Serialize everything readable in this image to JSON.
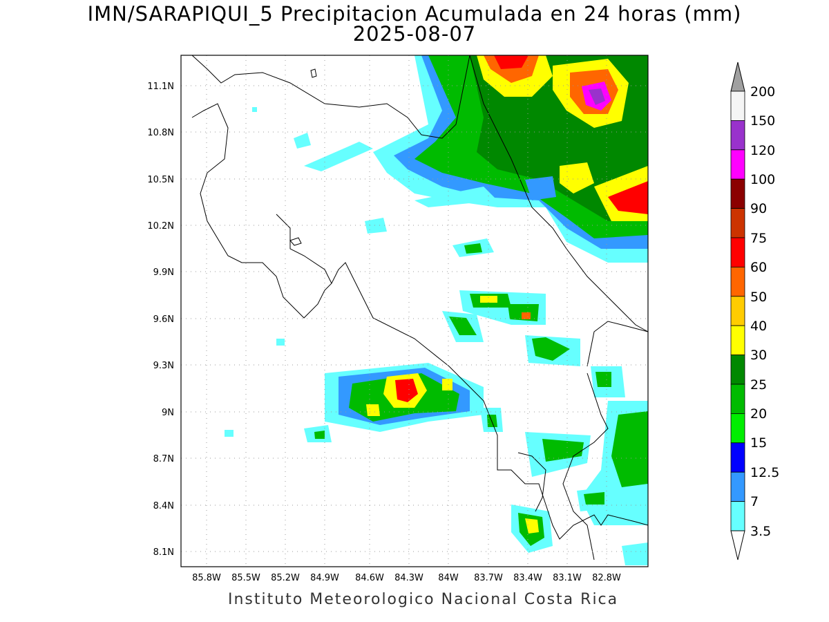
{
  "title": {
    "line1": "IMN/SARAPIQUI_5 Precipitacion Acumulada en 24 horas (mm)",
    "line2": "2025-08-07"
  },
  "footer": "Instituto Meteorologico Nacional Costa Rica",
  "axes": {
    "x_ticks": [
      "85.8W",
      "85.5W",
      "85.2W",
      "84.9W",
      "84.6W",
      "84.3W",
      "84W",
      "83.7W",
      "83.4W",
      "83.1W",
      "82.8W"
    ],
    "y_ticks": [
      "11.1N",
      "10.8N",
      "10.5N",
      "10.2N",
      "9.9N",
      "9.6N",
      "9.3N",
      "9N",
      "8.7N",
      "8.4N",
      "8.1N"
    ],
    "lon_range": [
      -86.0,
      -82.5
    ],
    "lat_range": [
      8.0,
      11.3
    ],
    "grid": "dotted"
  },
  "colorbar": {
    "levels": [
      "200",
      "150",
      "120",
      "100",
      "90",
      "75",
      "60",
      "50",
      "40",
      "30",
      "25",
      "20",
      "15",
      "12.5",
      "7",
      "3.5"
    ],
    "colors": [
      "#f5f5f5",
      "#9932cc",
      "#ff00ff",
      "#8b0000",
      "#cc3300",
      "#ff0000",
      "#ff6600",
      "#ffcc00",
      "#ffff00",
      "#008800",
      "#00bb00",
      "#00ee00",
      "#0000ff",
      "#3399ff",
      "#66ffff"
    ],
    "over_color": "#a0a0a0",
    "under_color": "#ffffff"
  }
}
